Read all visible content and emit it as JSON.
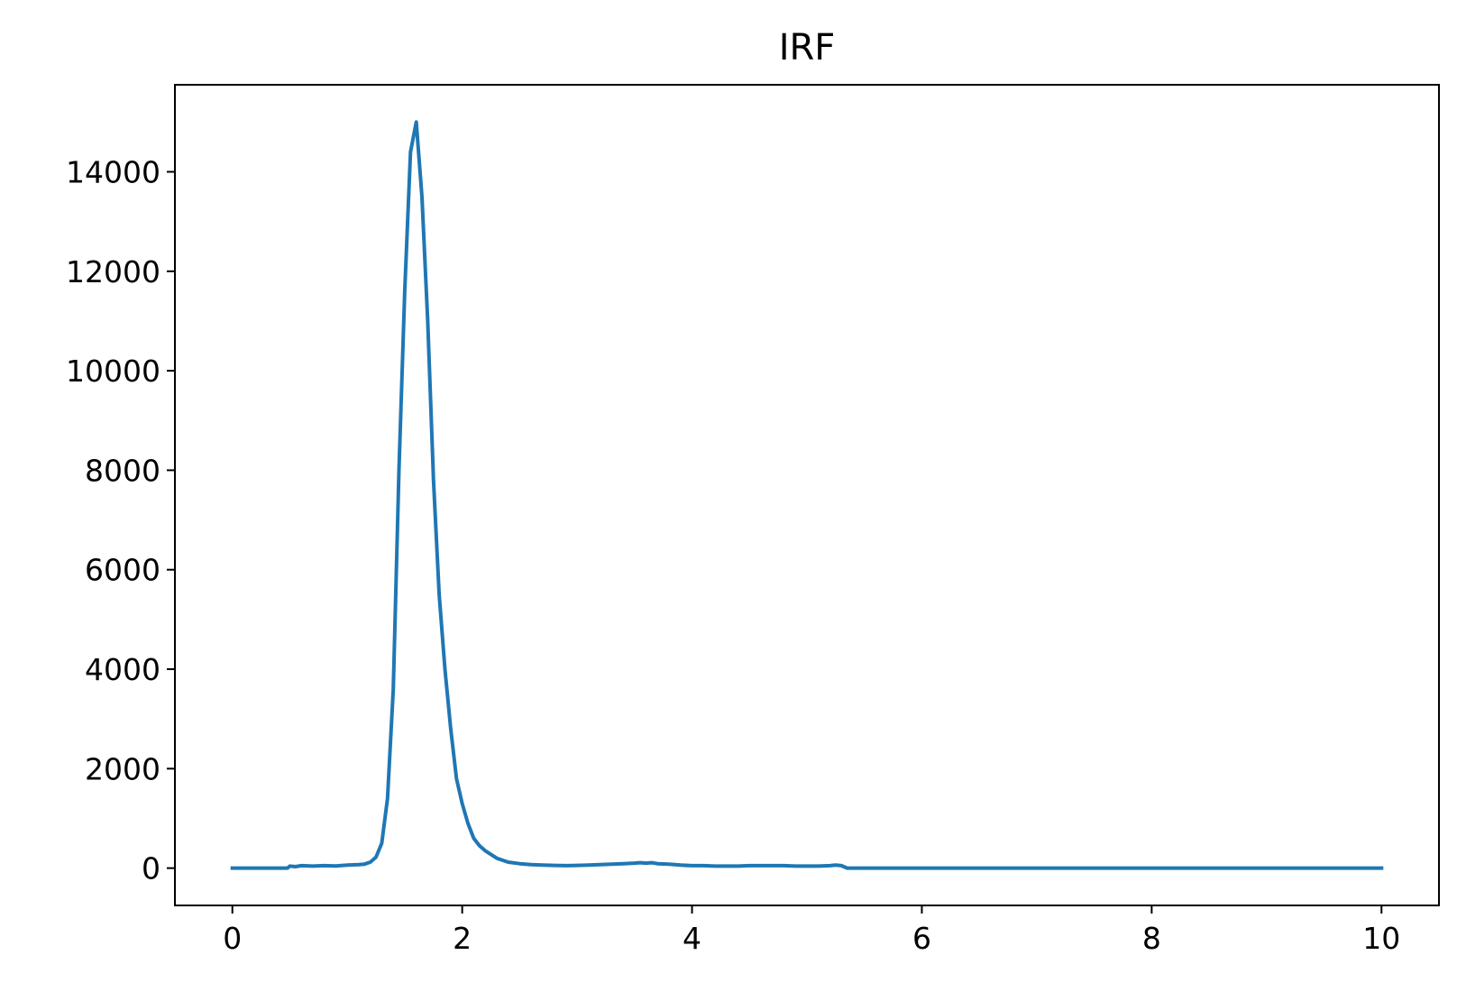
{
  "chart_data": {
    "type": "line",
    "title": "IRF",
    "xlabel": "",
    "ylabel": "",
    "xlim": [
      -0.5,
      10.5
    ],
    "ylim": [
      -750,
      15750
    ],
    "xticks": [
      0,
      2,
      4,
      6,
      8,
      10
    ],
    "yticks": [
      0,
      2000,
      4000,
      6000,
      8000,
      10000,
      12000,
      14000
    ],
    "grid": false,
    "series": [
      {
        "color": "#1f77b4",
        "x": [
          0,
          0.2,
          0.4,
          0.48,
          0.5,
          0.55,
          0.6,
          0.7,
          0.8,
          0.9,
          1.0,
          1.1,
          1.15,
          1.2,
          1.25,
          1.3,
          1.35,
          1.4,
          1.45,
          1.5,
          1.55,
          1.6,
          1.65,
          1.7,
          1.75,
          1.8,
          1.85,
          1.9,
          1.95,
          2.0,
          2.05,
          2.1,
          2.15,
          2.2,
          2.3,
          2.4,
          2.5,
          2.6,
          2.7,
          2.8,
          2.9,
          3.0,
          3.1,
          3.2,
          3.3,
          3.4,
          3.5,
          3.55,
          3.6,
          3.65,
          3.7,
          3.8,
          3.9,
          4.0,
          4.1,
          4.2,
          4.3,
          4.4,
          4.5,
          4.6,
          4.7,
          4.8,
          4.9,
          5.0,
          5.1,
          5.2,
          5.25,
          5.3,
          5.35,
          5.5,
          6,
          7,
          8,
          9,
          10
        ],
        "y": [
          0,
          0,
          0,
          0,
          40,
          30,
          50,
          40,
          50,
          45,
          60,
          70,
          80,
          120,
          220,
          500,
          1400,
          3600,
          8000,
          11600,
          14400,
          15000,
          13500,
          11000,
          7800,
          5500,
          4000,
          2800,
          1800,
          1300,
          900,
          600,
          450,
          350,
          200,
          120,
          90,
          70,
          60,
          55,
          50,
          55,
          60,
          70,
          80,
          90,
          100,
          110,
          100,
          110,
          90,
          80,
          60,
          50,
          50,
          40,
          40,
          40,
          50,
          50,
          50,
          50,
          40,
          40,
          40,
          50,
          60,
          50,
          0,
          0,
          0,
          0,
          0,
          0,
          0
        ]
      }
    ]
  }
}
